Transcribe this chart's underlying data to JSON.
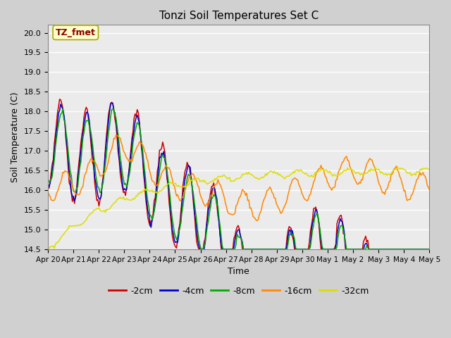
{
  "title": "Tonzi Soil Temperatures Set C",
  "xlabel": "Time",
  "ylabel": "Soil Temperature (C)",
  "ylim": [
    14.5,
    20.2
  ],
  "annotation": "TZ_fmet",
  "bg_color": "#ebebeb",
  "plot_bg": "#ebebeb",
  "line_colors": {
    "-2cm": "#cc0000",
    "-4cm": "#0000cc",
    "-8cm": "#00aa00",
    "-16cm": "#ff8800",
    "-32cm": "#dddd00"
  },
  "x_tick_labels": [
    "Apr 20",
    "Apr 21",
    "Apr 22",
    "Apr 23",
    "Apr 24",
    "Apr 25",
    "Apr 26",
    "Apr 27",
    "Apr 28",
    "Apr 29",
    "Apr 30",
    "May 1",
    "May 2",
    "May 3",
    "May 4",
    "May 5"
  ],
  "num_points": 360
}
